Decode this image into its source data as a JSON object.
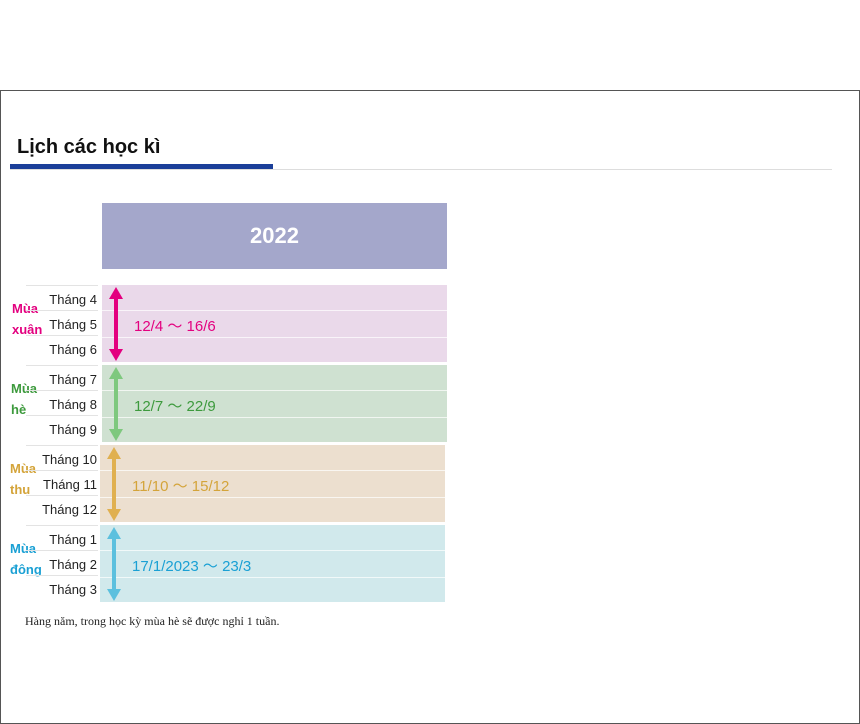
{
  "page": {
    "title": "Lịch các học kì",
    "year": "2022",
    "note": "Hàng năm, trong học kỳ mùa hè sẽ được nghỉ 1 tuần."
  },
  "seasons": [
    {
      "name_line1": "Mùa",
      "name_line2": "xuân",
      "months": [
        "Tháng 4",
        "Tháng 5",
        "Tháng 6"
      ],
      "range": "12/4 ～ 16/6",
      "color": "#e3007f",
      "bg": "#ead9ea"
    },
    {
      "name_line1": "Mùa",
      "name_line2": "hè",
      "months": [
        "Tháng 7",
        "Tháng 8",
        "Tháng 9"
      ],
      "range": "12/7 ～ 22/9",
      "color": "#3d9a3d",
      "bg": "#cfe1d1"
    },
    {
      "name_line1": "Mùa",
      "name_line2": "thu",
      "months": [
        "Tháng 10",
        "Tháng 11",
        "Tháng 12"
      ],
      "range": "11/10 ～ 15/12",
      "color": "#d4a43a",
      "bg": "#ecdfcf"
    },
    {
      "name_line1": "Mùa",
      "name_line2": "đông",
      "months": [
        "Tháng 1",
        "Tháng 2",
        "Tháng 3"
      ],
      "range": "17/1/2023 ～ 23/3",
      "color": "#1aa0d4",
      "bg": "#d1e9ec"
    }
  ],
  "arrow_colors": [
    "#e3007f",
    "#7ec87e",
    "#e0b050",
    "#5cc0de"
  ]
}
